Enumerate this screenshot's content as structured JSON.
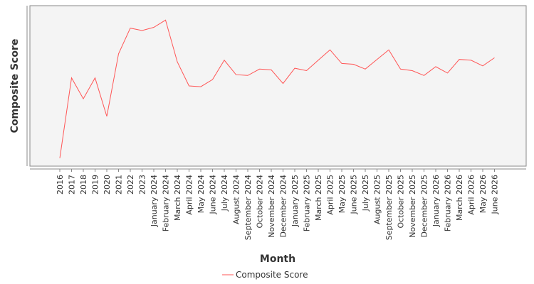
{
  "chart_data": {
    "type": "line",
    "title": "",
    "xlabel": "Month",
    "ylabel": "Composite Score",
    "categories": [
      "2016",
      "2017",
      "2018",
      "2019",
      "2020",
      "2021",
      "2022",
      "2023",
      "January 2024",
      "February 2024",
      "March 2024",
      "April 2024",
      "May 2024",
      "June 2024",
      "July 2024",
      "August 2024",
      "September 2024",
      "October 2024",
      "November 2024",
      "December 2024",
      "January 2025",
      "February 2025",
      "March 2025",
      "April 2025",
      "May 2025",
      "June 2025",
      "July 2025",
      "August 2025",
      "September 2025",
      "October 2025",
      "November 2025",
      "December 2025",
      "January 2026",
      "February 2026",
      "March 2026",
      "April 2026",
      "May 2026",
      "June 2026"
    ],
    "series": [
      {
        "name": "Composite Score",
        "color": "#ff5555",
        "values": [
          5,
          55,
          42,
          55,
          31,
          70,
          86,
          84.5,
          86.5,
          91,
          65,
          50,
          49.5,
          54,
          66,
          57,
          56.5,
          60.5,
          60,
          51.5,
          61,
          59.5,
          66,
          72.5,
          64,
          63.5,
          60.5,
          66.5,
          72.5,
          60.5,
          59.5,
          56.5,
          62,
          58,
          66.5,
          66,
          62.5,
          67.5
        ]
      }
    ],
    "ylim": [
      0,
      100
    ],
    "y_ticks_shown": false,
    "grid": false,
    "legend": "bottom-center"
  }
}
